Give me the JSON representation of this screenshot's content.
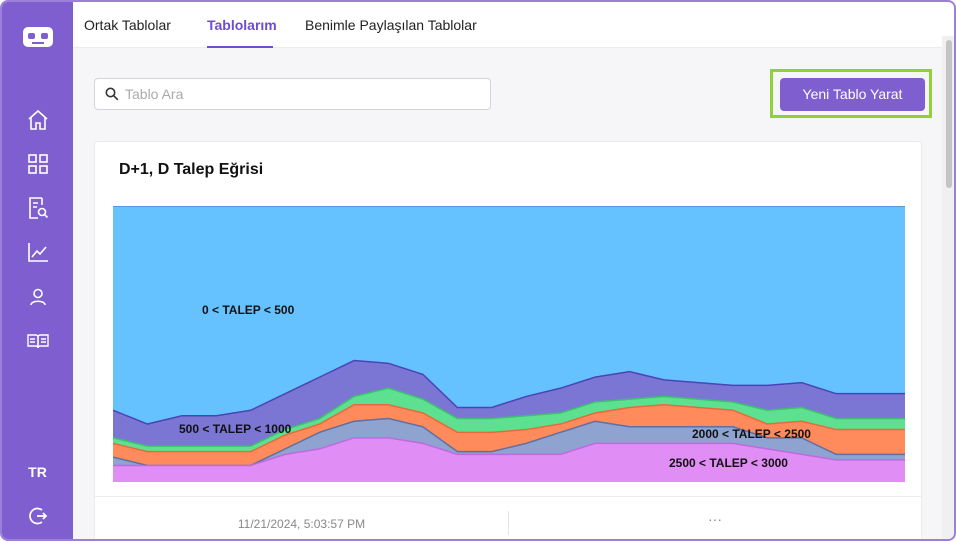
{
  "tabs": [
    {
      "label": "Ortak Tablolar",
      "active": false
    },
    {
      "label": "Tablolarım",
      "active": true
    },
    {
      "label": "Benimle Paylaşılan Tablolar",
      "active": false
    }
  ],
  "sidebar": {
    "items": [
      "robot-logo-icon",
      "home-icon",
      "dashboard-icon",
      "report-search-icon",
      "line-chart-icon",
      "user-icon",
      "book-icon"
    ],
    "language": "TR",
    "logout": "logout-icon"
  },
  "search": {
    "placeholder": "Tablo Ara",
    "value": ""
  },
  "new_table_button": "Yeni Tablo Yarat",
  "card": {
    "title": "D+1, D Talep Eğrisi",
    "timestamp": "11/21/2024, 5:03:57 PM",
    "more": "···"
  },
  "colors": {
    "sidebar": "#7f5fcf",
    "accent": "#6e4dd0",
    "highlight": "#8fd137",
    "band_0_500": "#66c2ff",
    "band_500_1000": "#7b76d4",
    "band_1000_1500": "#5de08f",
    "band_1500_2000": "#ff8a5c",
    "band_2000_2500": "#8fa3d1",
    "band_2500_3000": "#e08df5"
  },
  "chart_data": {
    "type": "area",
    "title": "D+1, D Talep Eğrisi",
    "xlabel": "",
    "ylabel": "",
    "x": [
      0,
      1,
      2,
      3,
      4,
      5,
      6,
      7,
      8,
      9,
      10,
      11,
      12,
      13,
      14,
      15,
      16,
      17,
      18,
      19,
      20,
      21,
      22,
      23
    ],
    "ylim": [
      0,
      100
    ],
    "grid": false,
    "series": [
      {
        "name": "2500 < TALEP < 3000",
        "values": [
          6,
          6,
          6,
          6,
          6,
          10,
          12,
          16,
          16,
          14,
          10,
          10,
          10,
          10,
          14,
          14,
          14,
          14,
          14,
          12,
          10,
          8,
          8,
          8
        ]
      },
      {
        "name": "2000 < TALEP < 2500",
        "values": [
          3,
          0,
          0,
          0,
          0,
          2,
          6,
          6,
          7,
          6,
          1,
          1,
          4,
          8,
          8,
          6,
          6,
          6,
          6,
          4,
          6,
          2,
          2,
          2
        ]
      },
      {
        "name": "",
        "values": [
          5,
          5,
          5,
          5,
          5,
          5,
          3,
          6,
          5,
          5,
          7,
          7,
          5,
          3,
          3,
          7,
          8,
          7,
          6,
          5,
          6,
          9,
          9,
          9
        ]
      },
      {
        "name": "",
        "values": [
          2,
          2,
          2,
          2,
          2,
          2,
          2,
          3,
          6,
          5,
          5,
          5,
          5,
          4,
          4,
          3,
          3,
          3,
          3,
          5,
          5,
          4,
          4,
          4
        ]
      },
      {
        "name": "500 < TALEP < 1000",
        "values": [
          10,
          8,
          11,
          11,
          13,
          13,
          15,
          13,
          9,
          9,
          4,
          4,
          7,
          9,
          9,
          10,
          6,
          6,
          6,
          9,
          9,
          9,
          9,
          9
        ]
      },
      {
        "name": "0 < TALEP < 500",
        "values": [
          74,
          79,
          76,
          76,
          74,
          68,
          62,
          56,
          57,
          61,
          73,
          73,
          69,
          66,
          62,
          60,
          63,
          64,
          65,
          65,
          64,
          68,
          68,
          68
        ]
      }
    ]
  }
}
